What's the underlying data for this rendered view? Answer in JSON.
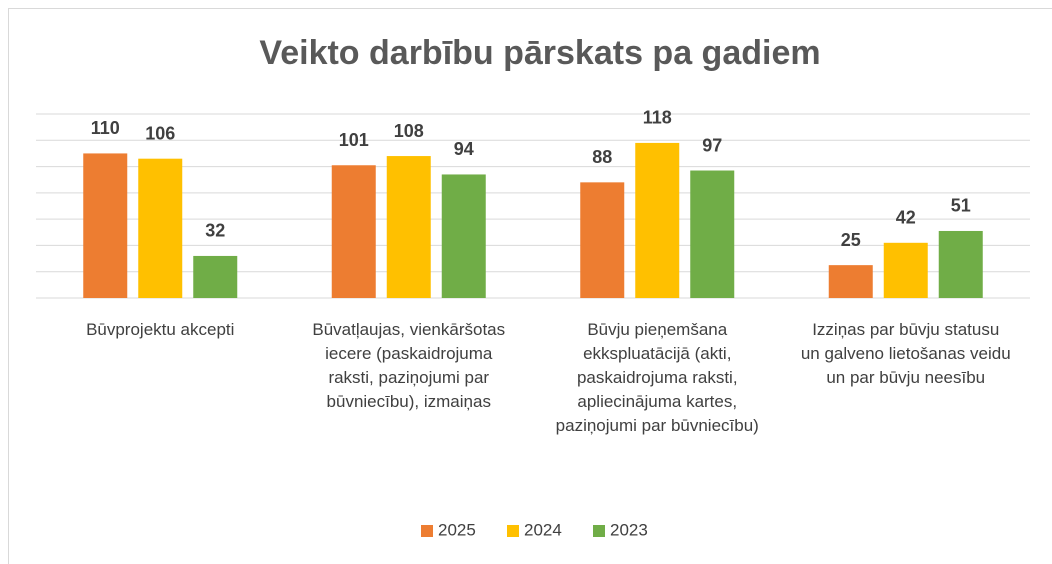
{
  "chart_data": {
    "type": "bar",
    "title": "Veikto darbību pārskats pa gadiem",
    "categories": [
      "Būvprojektu akcepti",
      "Būvatļaujas, vienkāršotas iecere (paskaidrojuma raksti, paziņojumi par būvniecību), izmaiņas",
      "Būvju pieņemšana ekkspluatācijā (akti, paskaidrojuma raksti, apliecinājuma kartes, paziņojumi par būvniecību)",
      "Izziņas par būvju statusu un galveno lietošanas veidu un par būvju neesību"
    ],
    "series": [
      {
        "name": "2025",
        "color": "#ED7D31",
        "values": [
          110,
          101,
          88,
          25
        ]
      },
      {
        "name": "2024",
        "color": "#FFC000",
        "values": [
          106,
          108,
          118,
          42
        ]
      },
      {
        "name": "2023",
        "color": "#70AD47",
        "values": [
          32,
          94,
          97,
          51
        ]
      }
    ],
    "ylim": [
      0,
      140
    ],
    "yticks": [
      0,
      20,
      40,
      60,
      80,
      100,
      120,
      140
    ],
    "grid": true,
    "legend": "bottom"
  }
}
